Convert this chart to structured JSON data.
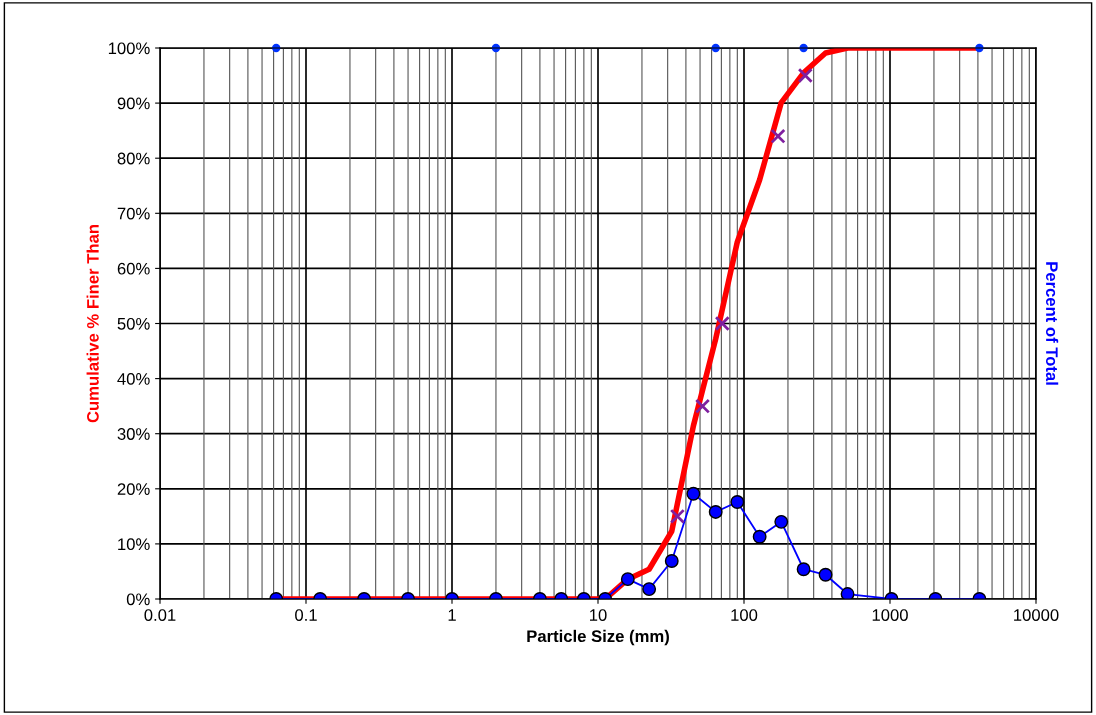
{
  "chart_data": {
    "type": "line",
    "xlabel": "Particle Size (mm)",
    "ylabel": "Cumulative % Finer Than",
    "y2label": "Percent of Total",
    "log": "x",
    "grid": true,
    "xlim": [
      0.01,
      10000
    ],
    "xticks": [
      0.01,
      0.1,
      1,
      10,
      100,
      1000,
      10000
    ],
    "ylim": [
      0,
      100
    ],
    "yticks": [
      {
        "value": 0,
        "label": "0%"
      },
      {
        "value": 10,
        "label": "10%"
      },
      {
        "value": 20,
        "label": "20%"
      },
      {
        "value": 30,
        "label": "30%"
      },
      {
        "value": 40,
        "label": "40%"
      },
      {
        "value": 50,
        "label": "50%"
      },
      {
        "value": 60,
        "label": "60%"
      },
      {
        "value": 70,
        "label": "70%"
      },
      {
        "value": 80,
        "label": "80%"
      },
      {
        "value": 90,
        "label": "90%"
      },
      {
        "value": 100,
        "label": "100%"
      }
    ],
    "x": [
      0.0625,
      0.125,
      0.25,
      0.5,
      1,
      2,
      4,
      5.6,
      8,
      11.2,
      16,
      22.4,
      32,
      45,
      64,
      90,
      128,
      180,
      256,
      362,
      512,
      1024,
      2048,
      4096
    ],
    "series": [
      {
        "color": "#ff0000",
        "marker": "none",
        "values": [
          0,
          0,
          0,
          0,
          0,
          0,
          0,
          0,
          0,
          0,
          3.6,
          5.4,
          12.3,
          31.4,
          47.2,
          64.8,
          76.1,
          90.1,
          95.5,
          99.1,
          100,
          100,
          100,
          100
        ]
      },
      {
        "color": "#0000ff",
        "marker": "circle",
        "values": [
          0,
          0,
          0,
          0,
          0,
          0,
          0,
          0,
          0,
          0,
          3.6,
          1.8,
          6.9,
          19.1,
          15.8,
          17.6,
          11.3,
          14.0,
          5.4,
          4.4,
          0.9,
          0,
          0,
          0
        ]
      },
      {
        "type": "scatter",
        "color": "#7f1f9f",
        "marker": "cross",
        "x": [
          35,
          52,
          71,
          171,
          263
        ],
        "values": [
          15,
          35,
          50,
          84,
          95
        ]
      },
      {
        "type": "scatter",
        "color": "#0033ff",
        "marker": "circle",
        "x": [
          0.0625,
          2,
          64,
          256,
          4096
        ],
        "values": [
          100,
          100,
          100,
          100,
          100
        ]
      }
    ]
  }
}
